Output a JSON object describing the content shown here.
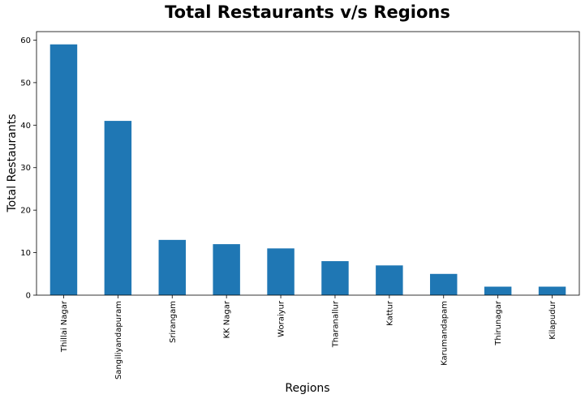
{
  "chart_data": {
    "type": "bar",
    "title": "Total Restaurants v/s Regions",
    "xlabel": "Regions",
    "ylabel": "Total Restaurants",
    "categories": [
      "Thillai Nagar",
      "Sangiliyandapuram",
      "Srirangam",
      "KK Nagar",
      "Woraiyur",
      "Tharanallur",
      "Kattur",
      "Karumandapam",
      "Thirunagar",
      "Kilapudur"
    ],
    "values": [
      59,
      41,
      13,
      12,
      11,
      8,
      7,
      5,
      2,
      2
    ],
    "ylim": [
      0,
      62
    ],
    "yticks": [
      0,
      10,
      20,
      30,
      40,
      50,
      60
    ],
    "bar_color": "#1f77b4",
    "grid": false,
    "legend": "none"
  }
}
